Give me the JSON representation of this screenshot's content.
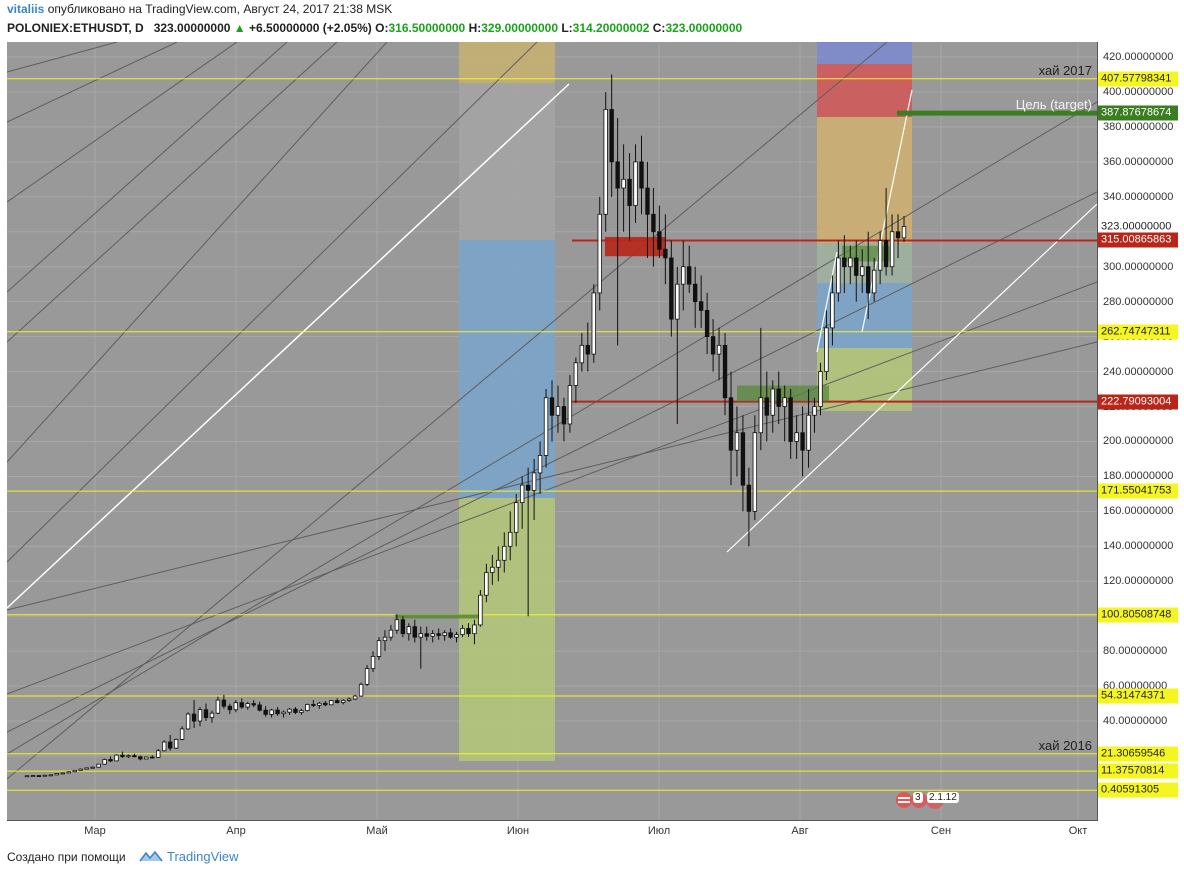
{
  "header": {
    "author": "vitaliis",
    "published_text": "опубликовано на TradingView.com, Август 24, 2017 21:38 MSK",
    "symbol": "POLONIEX:ETHUSDT, D",
    "last_price": "323.00000000",
    "arrow": "▲",
    "change": "+6.50000000 (+2.05%)",
    "o_label": "O:",
    "o_value": "316.50000000",
    "h_label": "H:",
    "h_value": "329.00000000",
    "l_label": "L:",
    "l_value": "314.20000002",
    "c_label": "C:",
    "c_value": "323.00000000"
  },
  "footer": {
    "created_with": "Создано при помощи",
    "brand": "TradingView",
    "logo_icon": "tradingview-logo-icon"
  },
  "badges": {
    "flag_icon": "us-flag-icon",
    "count": "3",
    "value": "2.1.12"
  },
  "colors": {
    "plot_bg": "#999999",
    "yellow_line": "#f5f521",
    "red_line": "#b8261a",
    "green_line": "#3b7d21",
    "fib_top": "#8d8de0",
    "fib_red": "#e05555",
    "fib_orange": "#d8b070",
    "fib_blue": "#7aaad8",
    "fib_green": "#b8d878"
  },
  "chart_data": {
    "type": "candlestick",
    "symbol": "POLONIEX:ETHUSDT",
    "interval": "D",
    "ylim": [
      0,
      430
    ],
    "y_ticks": [
      20,
      40,
      60,
      80,
      100,
      120,
      140,
      160,
      180,
      200,
      220,
      240,
      260,
      280,
      300,
      320,
      340,
      360,
      380,
      400,
      420
    ],
    "y_tick_labels": [
      "20.00000000",
      "40.00000000",
      "60.00000000",
      "80.00000000",
      "100.00000000",
      "120.00000000",
      "140.00000000",
      "160.00000000",
      "180.00000000",
      "200.00000000",
      "220.00000000",
      "240.00000000",
      "260.00000000",
      "280.00000000",
      "300.00000000",
      "320.00000000",
      "340.00000000",
      "360.00000000",
      "380.00000000",
      "400.00000000",
      "420.00000000"
    ],
    "x_labels": [
      "Мар",
      "Апр",
      "Май",
      "Июн",
      "Июл",
      "Авг",
      "Сен",
      "Окт"
    ],
    "horizontal_levels": [
      {
        "value": 407.57798341,
        "label": "407.57798341",
        "color": "yellow",
        "note": "хай 2017"
      },
      {
        "value": 387.87678674,
        "label": "387.87678674",
        "color": "green",
        "note": "Цель (target)"
      },
      {
        "value": 323.0,
        "label": "323.00000000",
        "color": "white"
      },
      {
        "value": 315.00865863,
        "label": "315.00865863",
        "color": "red"
      },
      {
        "value": 262.74747311,
        "label": "262.74747311",
        "color": "yellow"
      },
      {
        "value": 222.79093004,
        "label": "222.79093004",
        "color": "red"
      },
      {
        "value": 171.55041753,
        "label": "171.55041753",
        "color": "yellow"
      },
      {
        "value": 100.80508748,
        "label": "100.80508748",
        "color": "yellow"
      },
      {
        "value": 54.31474371,
        "label": "54.31474371",
        "color": "yellow"
      },
      {
        "value": 21.30659546,
        "label": "21.30659546",
        "color": "yellow",
        "note": "хай 2016"
      },
      {
        "value": 11.37570814,
        "label": "11.37570814",
        "color": "yellow"
      },
      {
        "value": 0.40591305,
        "label": "0.40591305",
        "color": "yellow"
      }
    ],
    "candles": [
      [
        8.5,
        8.9,
        8.2,
        8.7
      ],
      [
        8.7,
        9.1,
        8.4,
        8.8
      ],
      [
        8.8,
        9.0,
        8.5,
        8.6
      ],
      [
        8.6,
        9.2,
        8.4,
        9.0
      ],
      [
        9.0,
        9.4,
        8.8,
        9.2
      ],
      [
        9.2,
        10.2,
        9.0,
        10.0
      ],
      [
        10.0,
        10.6,
        9.7,
        10.3
      ],
      [
        10.3,
        11.2,
        10.1,
        11.0
      ],
      [
        11.0,
        12.0,
        10.7,
        11.8
      ],
      [
        11.8,
        12.8,
        11.5,
        12.5
      ],
      [
        12.5,
        13.4,
        12.2,
        13.2
      ],
      [
        13.2,
        14.0,
        12.8,
        13.6
      ],
      [
        13.6,
        15.5,
        13.3,
        15.3
      ],
      [
        15.3,
        18.5,
        15.0,
        18.0
      ],
      [
        18.0,
        19.8,
        16.5,
        17.2
      ],
      [
        17.2,
        21.0,
        17.0,
        20.5
      ],
      [
        20.5,
        22.5,
        19.0,
        19.6
      ],
      [
        19.6,
        20.8,
        18.8,
        20.2
      ],
      [
        20.2,
        21.3,
        19.2,
        19.6
      ],
      [
        19.6,
        20.2,
        17.5,
        18.3
      ],
      [
        18.3,
        19.8,
        18.0,
        19.4
      ],
      [
        19.4,
        20.4,
        18.6,
        19.2
      ],
      [
        19.2,
        24.0,
        19.0,
        23.0
      ],
      [
        23.0,
        29.0,
        22.5,
        28.0
      ],
      [
        28.0,
        32.0,
        23.0,
        24.5
      ],
      [
        24.5,
        30.0,
        24.0,
        29.5
      ],
      [
        29.5,
        37.0,
        29.0,
        35.5
      ],
      [
        35.5,
        45.0,
        35.0,
        44.0
      ],
      [
        44.0,
        52.0,
        36.0,
        40.0
      ],
      [
        40.0,
        48.0,
        37.0,
        46.5
      ],
      [
        46.5,
        50.0,
        40.0,
        42.0
      ],
      [
        42.0,
        46.0,
        39.0,
        44.5
      ],
      [
        44.5,
        54.0,
        44.0,
        52.0
      ],
      [
        52.0,
        55.0,
        47.0,
        48.5
      ],
      [
        48.5,
        50.0,
        44.0,
        46.5
      ],
      [
        46.5,
        52.0,
        45.0,
        50.5
      ],
      [
        50.5,
        53.0,
        47.0,
        48.0
      ],
      [
        48.0,
        51.0,
        46.5,
        50.0
      ],
      [
        50.0,
        52.0,
        48.0,
        49.2
      ],
      [
        49.2,
        51.0,
        45.5,
        46.2
      ],
      [
        46.2,
        48.5,
        42.5,
        43.8
      ],
      [
        43.8,
        47.0,
        42.0,
        46.3
      ],
      [
        46.3,
        48.0,
        43.0,
        44.2
      ],
      [
        44.2,
        46.0,
        42.0,
        45.1
      ],
      [
        45.1,
        47.5,
        43.5,
        46.8
      ],
      [
        46.8,
        48.0,
        44.0,
        44.9
      ],
      [
        44.9,
        47.0,
        43.5,
        46.0
      ],
      [
        46.0,
        50.0,
        45.5,
        49.5
      ],
      [
        49.5,
        52.0,
        48.0,
        49.0
      ],
      [
        49.0,
        51.0,
        47.0,
        50.2
      ],
      [
        50.2,
        51.5,
        48.5,
        49.3
      ],
      [
        49.3,
        52.0,
        49.0,
        51.7
      ],
      [
        51.7,
        53.0,
        50.0,
        50.6
      ],
      [
        50.6,
        52.5,
        49.5,
        51.8
      ],
      [
        51.8,
        53.5,
        51.0,
        52.6
      ],
      [
        52.6,
        55.0,
        52.0,
        54.3
      ],
      [
        54.3,
        62.0,
        54.0,
        61.0
      ],
      [
        61.0,
        72.0,
        60.0,
        70.0
      ],
      [
        70.0,
        80.0,
        68.0,
        77.0
      ],
      [
        77.0,
        88.0,
        75.0,
        86.0
      ],
      [
        86.0,
        92.0,
        80.0,
        88.0
      ],
      [
        88.0,
        95.0,
        86.0,
        92.0
      ],
      [
        92.0,
        101.0,
        90.0,
        98.0
      ],
      [
        98.0,
        100.0,
        88.0,
        90.0
      ],
      [
        90.0,
        96.0,
        86.0,
        94.0
      ],
      [
        94.0,
        98.0,
        85.0,
        88.0
      ],
      [
        88.0,
        94.0,
        70.0,
        90.0
      ],
      [
        90.0,
        94.0,
        86.0,
        88.5
      ],
      [
        88.5,
        92.0,
        85.0,
        90.0
      ],
      [
        90.0,
        93.0,
        86.5,
        89.0
      ],
      [
        89.0,
        92.0,
        86.0,
        90.5
      ],
      [
        90.5,
        93.0,
        87.0,
        88.0
      ],
      [
        88.0,
        91.0,
        85.0,
        89.5
      ],
      [
        89.5,
        95.0,
        88.0,
        93.0
      ],
      [
        93.0,
        96.0,
        88.0,
        90.0
      ],
      [
        90.0,
        98.0,
        84.0,
        95.0
      ],
      [
        95.0,
        115.0,
        94.0,
        112.0
      ],
      [
        112.0,
        130.0,
        108.0,
        125.0
      ],
      [
        125.0,
        135.0,
        118.0,
        128.0
      ],
      [
        128.0,
        140.0,
        120.0,
        132.0
      ],
      [
        132.0,
        148.0,
        125.0,
        140.0
      ],
      [
        140.0,
        160.0,
        132.0,
        148.0
      ],
      [
        148.0,
        170.0,
        140.0,
        165.0
      ],
      [
        165.0,
        180.0,
        150.0,
        175.0
      ],
      [
        175.0,
        185.0,
        100.0,
        172.0
      ],
      [
        172.0,
        190.0,
        155.0,
        182.0
      ],
      [
        182.0,
        200.0,
        170.0,
        192.0
      ],
      [
        192.0,
        230.0,
        185.0,
        225.0
      ],
      [
        225.0,
        235.0,
        200.0,
        215.0
      ],
      [
        215.0,
        232.0,
        205.0,
        220.0
      ],
      [
        220.0,
        225.0,
        200.0,
        210.0
      ],
      [
        210.0,
        238.0,
        205.0,
        232.0
      ],
      [
        232.0,
        248.0,
        222.0,
        245.0
      ],
      [
        245.0,
        262.0,
        240.0,
        255.0
      ],
      [
        255.0,
        268.0,
        240.0,
        250.0
      ],
      [
        250.0,
        290.0,
        245.0,
        285.0
      ],
      [
        285.0,
        340.0,
        275.0,
        330.0
      ],
      [
        330.0,
        400.0,
        320.0,
        390.0
      ],
      [
        390.0,
        410.0,
        340.0,
        360.0
      ],
      [
        360.0,
        385.0,
        255.0,
        345.0
      ],
      [
        345.0,
        370.0,
        320.0,
        350.0
      ],
      [
        350.0,
        365.0,
        315.0,
        335.0
      ],
      [
        335.0,
        370.0,
        325.0,
        360.0
      ],
      [
        360.0,
        375.0,
        330.0,
        345.0
      ],
      [
        345.0,
        360.0,
        305.0,
        330.0
      ],
      [
        330.0,
        345.0,
        300.0,
        320.0
      ],
      [
        320.0,
        335.0,
        305.0,
        310.0
      ],
      [
        310.0,
        330.0,
        290.0,
        305.0
      ],
      [
        305.0,
        315.0,
        260.0,
        270.0
      ],
      [
        270.0,
        300.0,
        210.0,
        290.0
      ],
      [
        290.0,
        315.0,
        275.0,
        300.0
      ],
      [
        300.0,
        312.0,
        285.0,
        290.0
      ],
      [
        290.0,
        300.0,
        265.0,
        280.0
      ],
      [
        280.0,
        295.0,
        265.0,
        275.0
      ],
      [
        275.0,
        285.0,
        250.0,
        260.0
      ],
      [
        260.0,
        270.0,
        240.0,
        250.0
      ],
      [
        250.0,
        265.0,
        235.0,
        255.0
      ],
      [
        255.0,
        262.0,
        215.0,
        225.0
      ],
      [
        225.0,
        240.0,
        175.0,
        195.0
      ],
      [
        195.0,
        220.0,
        180.0,
        205.0
      ],
      [
        205.0,
        215.0,
        160.0,
        175.0
      ],
      [
        175.0,
        185.0,
        140.0,
        160.0
      ],
      [
        160.0,
        215.0,
        155.0,
        205.0
      ],
      [
        205.0,
        265.0,
        195.0,
        225.0
      ],
      [
        225.0,
        240.0,
        200.0,
        215.0
      ],
      [
        215.0,
        235.0,
        205.0,
        230.0
      ],
      [
        230.0,
        240.0,
        210.0,
        220.0
      ],
      [
        220.0,
        232.0,
        200.0,
        225.0
      ],
      [
        225.0,
        230.0,
        190.0,
        200.0
      ],
      [
        200.0,
        215.0,
        190.0,
        205.0
      ],
      [
        205.0,
        220.0,
        180.0,
        195.0
      ],
      [
        195.0,
        230.0,
        185.0,
        215.0
      ],
      [
        215.0,
        225.0,
        205.0,
        220.0
      ],
      [
        220.0,
        245.0,
        215.0,
        240.0
      ],
      [
        240.0,
        275.0,
        235.0,
        265.0
      ],
      [
        265.0,
        295.0,
        255.0,
        285.0
      ],
      [
        285.0,
        315.0,
        280.0,
        305.0
      ],
      [
        305.0,
        318.0,
        285.0,
        300.0
      ],
      [
        300.0,
        312.0,
        290.0,
        305.0
      ],
      [
        305.0,
        315.0,
        280.0,
        295.0
      ],
      [
        295.0,
        310.0,
        285.0,
        300.0
      ],
      [
        300.0,
        320.0,
        270.0,
        285.0
      ],
      [
        285.0,
        305.0,
        280.0,
        298.0
      ],
      [
        298.0,
        320.0,
        290.0,
        315.0
      ],
      [
        315.0,
        345.0,
        295.0,
        300.0
      ],
      [
        300.0,
        330.0,
        295.0,
        320.0
      ],
      [
        320.0,
        330.0,
        305.0,
        316.5
      ],
      [
        316.5,
        329.0,
        314.2,
        323.0
      ]
    ]
  }
}
